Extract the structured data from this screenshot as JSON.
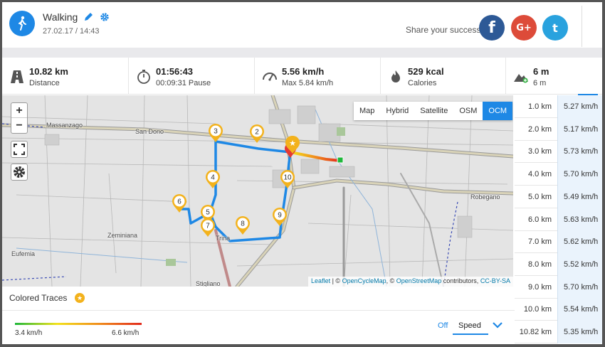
{
  "header": {
    "title": "Walking",
    "date": "27.02.17 / 14:43",
    "share_text": "Share your success",
    "social": {
      "facebook": "f",
      "google": "G+",
      "twitter": "t"
    },
    "icons": [
      "walking-person-icon",
      "pencil-icon",
      "gear-icon"
    ]
  },
  "stats": [
    {
      "icon": "road-icon",
      "value": "10.82 km",
      "label": "Distance"
    },
    {
      "icon": "stopwatch-icon",
      "value": "01:56:43",
      "label": "00:09:31 Pause"
    },
    {
      "icon": "speedometer-icon",
      "value": "5.56 km/h",
      "label": "Max 5.84 km/h"
    },
    {
      "icon": "flame-icon",
      "value": "529 kcal",
      "label": "Calories"
    },
    {
      "icon": "mountain-icon",
      "value": "6 m",
      "label": "6 m"
    }
  ],
  "map": {
    "controls": {
      "zoom_in": "+",
      "zoom_out": "−"
    },
    "layers": [
      "Map",
      "Hybrid",
      "Satellite",
      "OSM",
      "OCM"
    ],
    "active_layer": "OCM",
    "places": [
      "Massanzago",
      "San Dono",
      "Zeminiana",
      "Eufemia",
      "Trina",
      "Stigliano",
      "Robegano"
    ],
    "waypoints": [
      "2",
      "3",
      "4",
      "5",
      "6",
      "7",
      "8",
      "9",
      "10"
    ],
    "attribution": {
      "leaflet": "Leaflet",
      "sep1": " | © ",
      "ocm": "OpenCycleMap",
      "sep2": ", © ",
      "osm": "OpenStreetMap",
      "contrib": " contributors, ",
      "license": "CC-BY-SA"
    },
    "route_color": "#1e88e5"
  },
  "splits": [
    {
      "km": "1.0 km",
      "speed": "5.27 km/h"
    },
    {
      "km": "2.0 km",
      "speed": "5.17 km/h"
    },
    {
      "km": "3.0 km",
      "speed": "5.73 km/h"
    },
    {
      "km": "4.0 km",
      "speed": "5.70 km/h"
    },
    {
      "km": "5.0 km",
      "speed": "5.49 km/h"
    },
    {
      "km": "6.0 km",
      "speed": "5.63 km/h"
    },
    {
      "km": "7.0 km",
      "speed": "5.62 km/h"
    },
    {
      "km": "8.0 km",
      "speed": "5.52 km/h"
    },
    {
      "km": "9.0 km",
      "speed": "5.70 km/h"
    },
    {
      "km": "10.0 km",
      "speed": "5.54 km/h"
    },
    {
      "km": "10.82 km",
      "speed": "5.35 km/h"
    }
  ],
  "traces": {
    "title": "Colored Traces",
    "min": "3.4 km/h",
    "max": "6.6 km/h",
    "off": "Off",
    "selected": "Speed"
  },
  "colors": {
    "accent": "#1e88e5",
    "facebook": "#2d5996",
    "google": "#dd4b39",
    "twitter": "#29a2de",
    "star": "#f3b21c",
    "marker": "#e53935"
  }
}
